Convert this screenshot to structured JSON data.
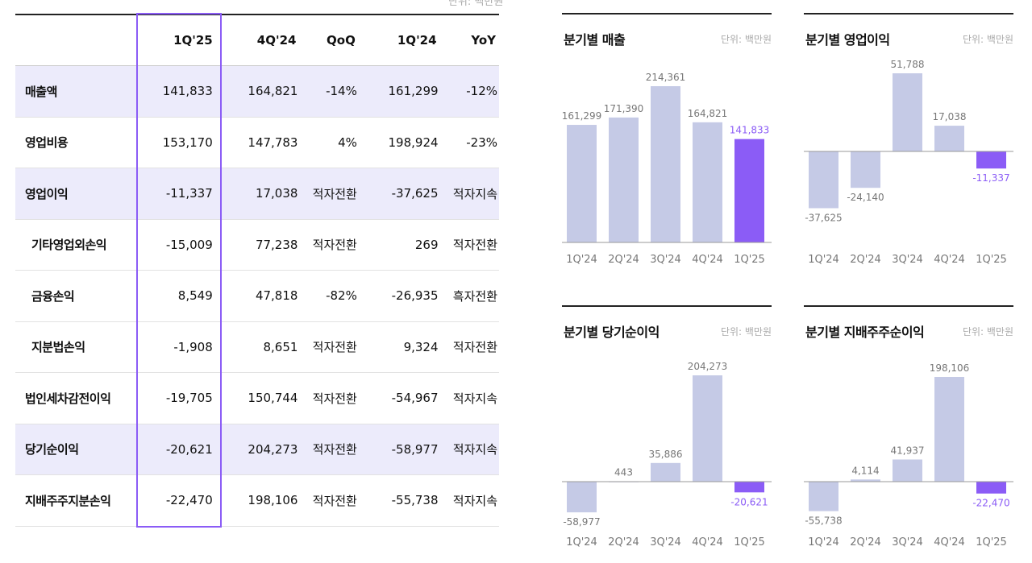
{
  "unit_label": "단위: 백만원",
  "table": {
    "columns": [
      "",
      "1Q'25",
      "4Q'24",
      "QoQ",
      "1Q'24",
      "YoY"
    ],
    "rows": [
      {
        "label": "매출액",
        "highlight": true,
        "sub": false,
        "values": [
          "141,833",
          "164,821",
          "-14%",
          "161,299",
          "-12%"
        ]
      },
      {
        "label": "영업비용",
        "highlight": false,
        "sub": false,
        "values": [
          "153,170",
          "147,783",
          "4%",
          "198,924",
          "-23%"
        ]
      },
      {
        "label": "영업이익",
        "highlight": true,
        "sub": false,
        "values": [
          "-11,337",
          "17,038",
          "적자전환",
          "-37,625",
          "적자지속"
        ]
      },
      {
        "label": "기타영업외손익",
        "highlight": false,
        "sub": true,
        "values": [
          "-15,009",
          "77,238",
          "적자전환",
          "269",
          "적자전환"
        ]
      },
      {
        "label": "금융손익",
        "highlight": false,
        "sub": true,
        "values": [
          "8,549",
          "47,818",
          "-82%",
          "-26,935",
          "흑자전환"
        ]
      },
      {
        "label": "지분법손익",
        "highlight": false,
        "sub": true,
        "values": [
          "-1,908",
          "8,651",
          "적자전환",
          "9,324",
          "적자전환"
        ]
      },
      {
        "label": "법인세차감전이익",
        "highlight": false,
        "sub": false,
        "values": [
          "-19,705",
          "150,744",
          "적자전환",
          "-54,967",
          "적자지속"
        ]
      },
      {
        "label": "당기순이익",
        "highlight": true,
        "sub": false,
        "values": [
          "-20,621",
          "204,273",
          "적자전환",
          "-58,977",
          "적자지속"
        ]
      },
      {
        "label": "지배주주지분손익",
        "highlight": false,
        "sub": false,
        "values": [
          "-22,470",
          "198,106",
          "적자전환",
          "-55,738",
          "적자지속"
        ]
      }
    ]
  },
  "colors": {
    "accent": "#8b5cf6",
    "bar": "#c5cae6",
    "row_highlight": "#ecebfb"
  },
  "chart_data": [
    {
      "type": "bar",
      "title": "분기별 매출",
      "unit": "단위: 백만원",
      "categories": [
        "1Q'24",
        "2Q'24",
        "3Q'24",
        "4Q'24",
        "1Q'25"
      ],
      "values": [
        161299,
        171390,
        214361,
        164821,
        141833
      ],
      "labels": [
        "161,299",
        "171,390",
        "214,361",
        "164,821",
        "141,833"
      ],
      "highlight_index": 4
    },
    {
      "type": "bar",
      "title": "분기별 영업이익",
      "unit": "단위: 백만원",
      "categories": [
        "1Q'24",
        "2Q'24",
        "3Q'24",
        "4Q'24",
        "1Q'25"
      ],
      "values": [
        -37625,
        -24140,
        51788,
        17038,
        -11337
      ],
      "labels": [
        "-37,625",
        "-24,140",
        "51,788",
        "17,038",
        "-11,337"
      ],
      "highlight_index": 4
    },
    {
      "type": "bar",
      "title": "분기별 당기순이익",
      "unit": "단위: 백만원",
      "categories": [
        "1Q'24",
        "2Q'24",
        "3Q'24",
        "4Q'24",
        "1Q'25"
      ],
      "values": [
        -58977,
        443,
        35886,
        204273,
        -20621
      ],
      "labels": [
        "-58,977",
        "443",
        "35,886",
        "204,273",
        "-20,621"
      ],
      "highlight_index": 4
    },
    {
      "type": "bar",
      "title": "분기별 지배주주순이익",
      "unit": "단위: 백만원",
      "categories": [
        "1Q'24",
        "2Q'24",
        "3Q'24",
        "4Q'24",
        "1Q'25"
      ],
      "values": [
        -55738,
        4114,
        41937,
        198106,
        -22470
      ],
      "labels": [
        "-55,738",
        "4,114",
        "41,937",
        "198,106",
        "-22,470"
      ],
      "highlight_index": 4
    }
  ]
}
